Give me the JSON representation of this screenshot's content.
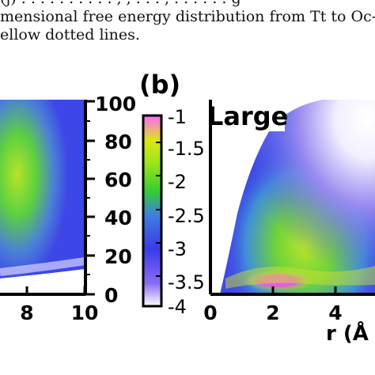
{
  "caption": {
    "line_top_partial": "(j) . . . . . . . . . . , , . . . , . . . . . . g",
    "line1": "mensional free energy distribution from Tt to Oc-s",
    "line2": "ellow dotted lines."
  },
  "panel_label": "(b)",
  "panel_title": "Large",
  "chart_data": [
    {
      "type": "heatmap",
      "name": "left panel (partial)",
      "xticks": [
        "8",
        "10"
      ],
      "yticks": [
        "0",
        "20",
        "40",
        "60",
        "80",
        "100"
      ],
      "ylim": [
        0,
        100
      ],
      "xlim_visible": [
        6,
        10
      ]
    },
    {
      "type": "colorbar",
      "ticks": [
        "-1",
        "-1.5",
        "-2",
        "-2.5",
        "-3",
        "-3.5",
        "-4"
      ],
      "range": [
        -4,
        -1
      ],
      "colors": [
        "#ffffff",
        "#5a3df0",
        "#3a3ae8",
        "#33cc33",
        "#99e61a",
        "#dde619",
        "#ff66ff"
      ]
    },
    {
      "type": "heatmap",
      "name": "right panel (partial)",
      "xticks": [
        "0",
        "2",
        "4"
      ],
      "xlabel": "r (Å",
      "ylim": [
        0,
        100
      ]
    }
  ]
}
